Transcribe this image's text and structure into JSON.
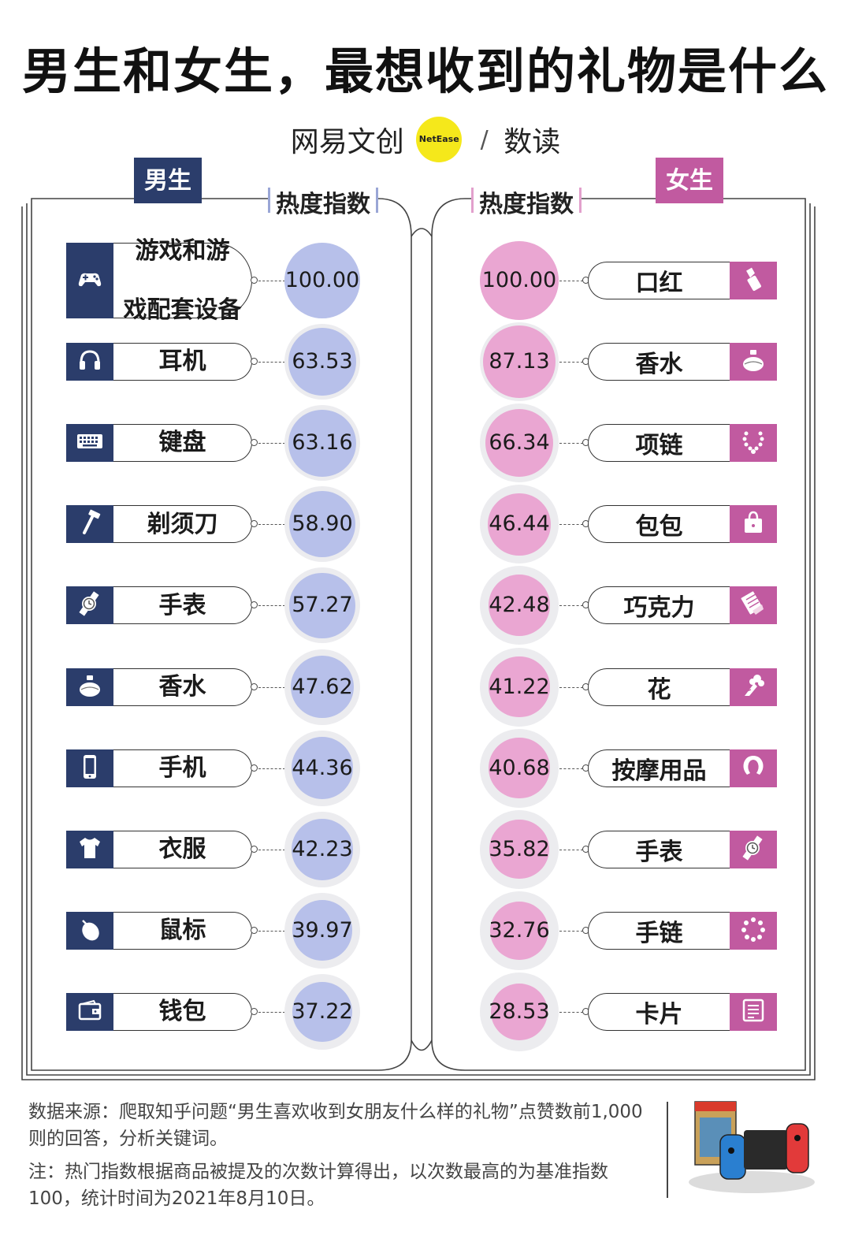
{
  "title": "男生和女生，最想收到的礼物是什么",
  "logo": {
    "brand": "网易文创",
    "badge": "NetEase",
    "sub": "数读"
  },
  "colors": {
    "male_accent": "#2b3d6b",
    "male_bubble": "#b7c0ea",
    "female_accent": "#c15aa0",
    "female_bubble": "#eaa6d2",
    "bubble_bg": "#ececef"
  },
  "headers": {
    "male_tag": "男生",
    "female_tag": "女生",
    "male_heat": "热度指数",
    "female_heat": "热度指数"
  },
  "chart_data": {
    "type": "bubble",
    "male": {
      "name": "男生",
      "categories": [
        "游戏和游戏配套设备",
        "耳机",
        "键盘",
        "剃须刀",
        "手表",
        "香水",
        "手机",
        "衣服",
        "鼠标",
        "钱包"
      ],
      "label_lines": [
        [
          "游戏和游",
          "戏配套设备"
        ],
        [
          "耳机"
        ],
        [
          "键盘"
        ],
        [
          "剃须刀"
        ],
        [
          "手表"
        ],
        [
          "香水"
        ],
        [
          "手机"
        ],
        [
          "衣服"
        ],
        [
          "鼠标"
        ],
        [
          "钱包"
        ]
      ],
      "display_values": [
        "100.00",
        "63.53",
        "63.16",
        "58.90",
        "57.27",
        "47.62",
        "44.36",
        "42.23",
        "39.97",
        "37.22"
      ],
      "values": [
        100.0,
        63.53,
        63.16,
        58.9,
        57.27,
        47.62,
        44.36,
        42.23,
        39.97,
        37.22
      ],
      "icons": [
        "gamepad-icon",
        "headphones-icon",
        "keyboard-icon",
        "razor-icon",
        "watch-icon",
        "perfume-icon",
        "phone-icon",
        "shirt-icon",
        "mouse-icon",
        "wallet-icon"
      ]
    },
    "female": {
      "name": "女生",
      "categories": [
        "口红",
        "香水",
        "项链",
        "包包",
        "巧克力",
        "花",
        "按摩用品",
        "手表",
        "手链",
        "卡片"
      ],
      "display_values": [
        "100.00",
        "87.13",
        "66.34",
        "46.44",
        "42.48",
        "41.22",
        "40.68",
        "35.82",
        "32.76",
        "28.53"
      ],
      "values": [
        100.0,
        87.13,
        66.34,
        46.44,
        42.48,
        41.22,
        40.68,
        35.82,
        32.76,
        28.53
      ],
      "icons": [
        "lipstick-icon",
        "perfume-icon",
        "necklace-icon",
        "bag-icon",
        "chocolate-icon",
        "flower-icon",
        "neck-pillow-icon",
        "watch-icon",
        "bracelet-icon",
        "card-icon"
      ]
    },
    "value_label": "热度指数",
    "max_value": 100
  },
  "notes": {
    "source": "数据来源：爬取知乎问题“男生喜欢收到女朋友什么样的礼物”点赞数前1,000则的回答，分析关键词。",
    "note": "注：热门指数根据商品被提及的次数计算得出，以次数最高的为基准指数100，统计时间为2021年8月10日。"
  }
}
